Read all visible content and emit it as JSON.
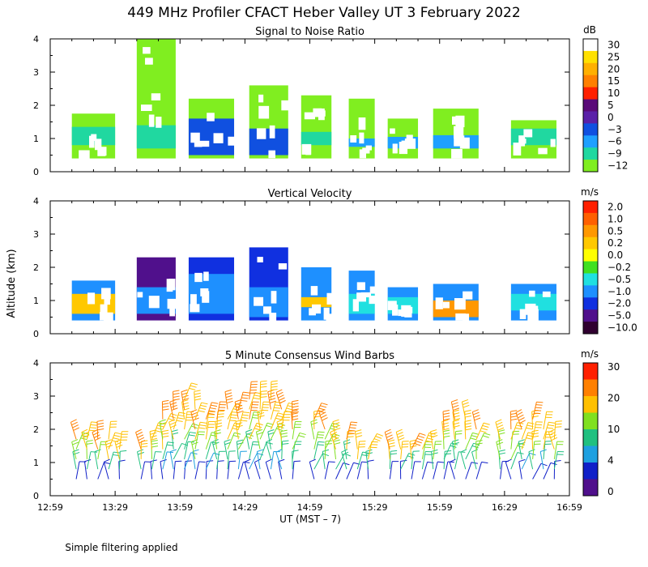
{
  "title": "449 MHz Profiler CFACT Heber Valley UT  3 February 2022",
  "footnote": "Simple filtering applied",
  "shared_ylabel": "Altitude (km)",
  "xlabel": "UT  (MST – 7)",
  "x_ticks": [
    "12:59",
    "13:29",
    "13:59",
    "14:29",
    "14:59",
    "15:29",
    "15:59",
    "16:29",
    "16:59"
  ],
  "y_ticks": [
    "0",
    "1",
    "2",
    "3",
    "4"
  ],
  "chart_data": [
    {
      "type": "heatmap",
      "title": "Signal to Noise Ratio",
      "xlim": [
        0,
        240
      ],
      "ylim": [
        0,
        4
      ],
      "colorbar_unit": "dB",
      "colorbar_labels": [
        "30",
        "25",
        "20",
        "15",
        "10",
        "5",
        "0",
        "−3",
        "−6",
        "−9",
        "−12"
      ],
      "colorbar_colors": [
        "#ffffff",
        "#ffe000",
        "#ffb000",
        "#ff8000",
        "#ff2000",
        "#5a0a78",
        "#5a20a8",
        "#1050e0",
        "#1ea0ff",
        "#20d8a0",
        "#80ee20"
      ],
      "segments": [
        {
          "x0": 10,
          "x1": 30,
          "ymin": 0.4,
          "ymax": 1.75,
          "color": "#80ee20",
          "core": "#20d8a0",
          "core_y": [
            0.8,
            1.35
          ]
        },
        {
          "x0": 40,
          "x1": 58,
          "ymin": 0.4,
          "ymax": 4.0,
          "color": "#80ee20",
          "core": "#20d8a0",
          "core_y": [
            0.7,
            1.4
          ]
        },
        {
          "x0": 64,
          "x1": 85,
          "ymin": 0.4,
          "ymax": 2.2,
          "color": "#80ee20",
          "core": "#1050e0",
          "core_y": [
            0.5,
            1.6
          ]
        },
        {
          "x0": 92,
          "x1": 110,
          "ymin": 0.4,
          "ymax": 2.6,
          "color": "#80ee20",
          "core": "#1050e0",
          "core_y": [
            0.5,
            1.3
          ]
        },
        {
          "x0": 116,
          "x1": 130,
          "ymin": 0.4,
          "ymax": 2.3,
          "color": "#80ee20",
          "core": "#20d8a0",
          "core_y": [
            0.8,
            1.2
          ]
        },
        {
          "x0": 138,
          "x1": 150,
          "ymin": 0.4,
          "ymax": 2.2,
          "color": "#80ee20",
          "core": "#1ea0ff",
          "core_y": [
            0.75,
            1.0
          ]
        },
        {
          "x0": 156,
          "x1": 170,
          "ymin": 0.4,
          "ymax": 1.6,
          "color": "#80ee20",
          "core": "#1ea0ff",
          "core_y": [
            0.7,
            1.05
          ]
        },
        {
          "x0": 177,
          "x1": 198,
          "ymin": 0.4,
          "ymax": 1.9,
          "color": "#80ee20",
          "core": "#1ea0ff",
          "core_y": [
            0.7,
            1.1
          ]
        },
        {
          "x0": 213,
          "x1": 234,
          "ymin": 0.4,
          "ymax": 1.55,
          "color": "#80ee20",
          "core": "#20d8a0",
          "core_y": [
            0.8,
            1.3
          ]
        }
      ]
    },
    {
      "type": "heatmap",
      "title": "Vertical Velocity",
      "xlim": [
        0,
        240
      ],
      "ylim": [
        0,
        4
      ],
      "colorbar_unit": "m/s",
      "colorbar_labels": [
        "2.0",
        "1.0",
        "0.5",
        "0.2",
        "0.0",
        "−0.2",
        "−0.5",
        "−1.0",
        "−2.0",
        "−5.0",
        "−10.0"
      ],
      "colorbar_colors": [
        "#ff2000",
        "#ff6000",
        "#ff9800",
        "#ffc800",
        "#ffff00",
        "#40e020",
        "#20e0e0",
        "#1e90ff",
        "#1030e0",
        "#50108c",
        "#300030"
      ],
      "segments": [
        {
          "x0": 10,
          "x1": 30,
          "ymin": 0.4,
          "ymax": 1.6,
          "color": "#1e90ff",
          "core": "#ffc800",
          "core_y": [
            0.6,
            1.2
          ]
        },
        {
          "x0": 40,
          "x1": 58,
          "ymin": 0.4,
          "ymax": 2.3,
          "color": "#50108c",
          "core": "#1e90ff",
          "core_y": [
            0.6,
            1.4
          ]
        },
        {
          "x0": 64,
          "x1": 85,
          "ymin": 0.4,
          "ymax": 2.3,
          "color": "#1030e0",
          "core": "#1e90ff",
          "core_y": [
            0.6,
            1.8
          ]
        },
        {
          "x0": 92,
          "x1": 110,
          "ymin": 0.4,
          "ymax": 2.6,
          "color": "#1030e0",
          "core": "#1e90ff",
          "core_y": [
            0.5,
            1.4
          ]
        },
        {
          "x0": 116,
          "x1": 130,
          "ymin": 0.4,
          "ymax": 2.0,
          "color": "#1e90ff",
          "core": "#ffc800",
          "core_y": [
            0.8,
            1.1
          ]
        },
        {
          "x0": 138,
          "x1": 150,
          "ymin": 0.4,
          "ymax": 1.9,
          "color": "#1e90ff",
          "core": "#20e0e0",
          "core_y": [
            0.6,
            1.2
          ]
        },
        {
          "x0": 156,
          "x1": 170,
          "ymin": 0.4,
          "ymax": 1.4,
          "color": "#1e90ff",
          "core": "#20e0e0",
          "core_y": [
            0.6,
            1.1
          ]
        },
        {
          "x0": 177,
          "x1": 198,
          "ymin": 0.4,
          "ymax": 1.5,
          "color": "#1e90ff",
          "core": "#ff9800",
          "core_y": [
            0.5,
            1.0
          ]
        },
        {
          "x0": 213,
          "x1": 234,
          "ymin": 0.4,
          "ymax": 1.5,
          "color": "#1e90ff",
          "core": "#20e0e0",
          "core_y": [
            0.7,
            1.2
          ]
        }
      ]
    },
    {
      "type": "scatter",
      "title": "5 Minute Consensus Wind Barbs",
      "xlim": [
        0,
        240
      ],
      "ylim": [
        0,
        4
      ],
      "colorbar_unit": "m/s",
      "colorbar_labels": [
        "30",
        "20",
        "10",
        "4",
        "0"
      ],
      "colorbar_colors": [
        "#ff2000",
        "#ff8000",
        "#ffc000",
        "#80e020",
        "#20c080",
        "#1ea0e0",
        "#1020c8",
        "#50108c"
      ],
      "speed_colors": [
        {
          "max": 4,
          "color": "#1020c8"
        },
        {
          "max": 6,
          "color": "#1ea0e0"
        },
        {
          "max": 10,
          "color": "#20c080"
        },
        {
          "max": 14,
          "color": "#80e020"
        },
        {
          "max": 20,
          "color": "#ffc000"
        },
        {
          "max": 26,
          "color": "#ff8000"
        },
        {
          "max": 99,
          "color": "#ff2000"
        }
      ],
      "barb_x": [
        12,
        17,
        22,
        27,
        32,
        42,
        47,
        52,
        57,
        62,
        67,
        72,
        77,
        82,
        87,
        92,
        97,
        102,
        107,
        112,
        122,
        127,
        132,
        137,
        142,
        147,
        157,
        162,
        167,
        172,
        177,
        182,
        187,
        192,
        197,
        208,
        213,
        218,
        223,
        228,
        233
      ],
      "barb_y": [
        0.5,
        0.8,
        1.1,
        1.4,
        1.7,
        2.0,
        2.3,
        2.6,
        2.9
      ],
      "barb_top": [
        1.9,
        1.9,
        1.7,
        1.7,
        1.6,
        1.4,
        1.9,
        2.4,
        2.8,
        3.0,
        2.6,
        2.5,
        2.5,
        2.6,
        2.7,
        2.9,
        3.0,
        3.0,
        2.7,
        2.5,
        2.5,
        2.2,
        1.9,
        1.7,
        1.6,
        1.5,
        1.5,
        1.6,
        1.5,
        1.4,
        1.6,
        2.0,
        2.3,
        2.3,
        2.0,
        1.9,
        2.0,
        2.2,
        2.3,
        2.0,
        1.7
      ],
      "speed_low": 3,
      "speed_high": 22
    }
  ]
}
